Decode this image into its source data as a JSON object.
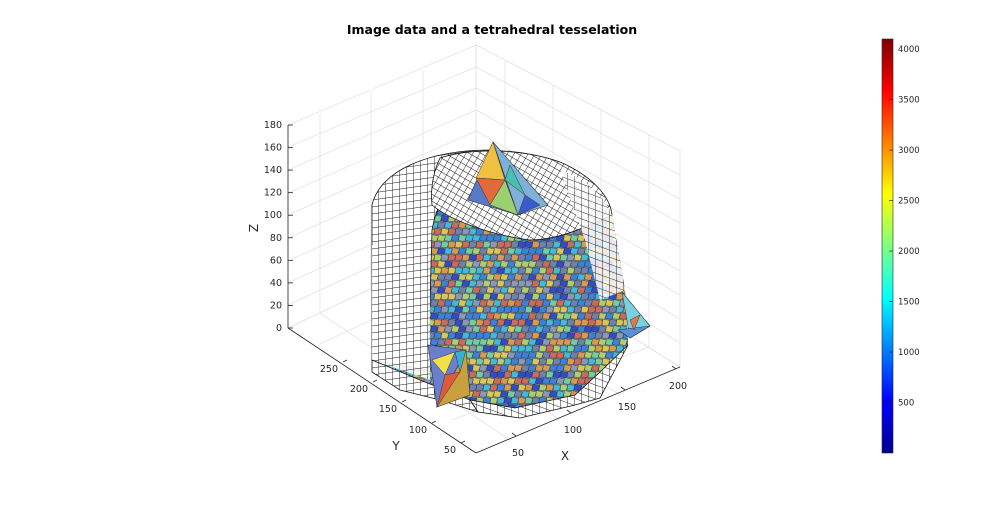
{
  "chart_data": {
    "type": "3d-voxel-mesh",
    "title": "Image data and a tetrahedral tesselation",
    "xlabel": "X",
    "ylabel": "Y",
    "zlabel": "Z",
    "x_ticks": [
      "50",
      "100",
      "150",
      "200"
    ],
    "y_ticks": [
      "50",
      "100",
      "150",
      "200",
      "250"
    ],
    "z_ticks": [
      "0",
      "20",
      "40",
      "60",
      "80",
      "100",
      "120",
      "140",
      "160",
      "180"
    ],
    "grid": true,
    "colormap": "jet",
    "colorbar": {
      "range": [
        0,
        4100
      ],
      "ticks": [
        "4000",
        "3500",
        "3000",
        "2500",
        "2000",
        "1500",
        "1000",
        "500"
      ]
    }
  },
  "colors": {
    "voxel_edge": "#141414",
    "axis": "#262626",
    "grid": "#e3e3e3",
    "background": "#ffffff"
  }
}
